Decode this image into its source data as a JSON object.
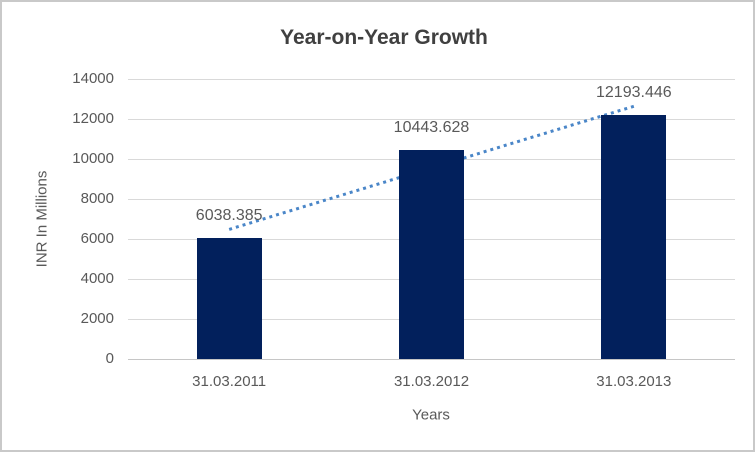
{
  "chart_data": {
    "type": "bar",
    "title": "Year-on-Year Growth",
    "categories": [
      "31.03.2011",
      "31.03.2012",
      "31.03.2013"
    ],
    "values": [
      6038.385,
      10443.628,
      12193.446
    ],
    "value_labels": [
      "6038.385",
      "10443.628",
      "12193.446"
    ],
    "xlabel": "Years",
    "ylabel": "INR In Millions",
    "ylim": [
      0,
      14000
    ],
    "yticks": [
      0,
      2000,
      4000,
      6000,
      8000,
      10000,
      12000,
      14000
    ],
    "grid": true,
    "legend": "none",
    "trendline": {
      "type": "linear",
      "style": "dotted"
    },
    "colors": {
      "bar": "#02205C",
      "trendline": "#4A86C8",
      "gridline": "#D9D9D9",
      "axis_line": "#C6C6C6",
      "text": "#595959",
      "title_text": "#404040",
      "border": "#C9C9C9",
      "background": "#FFFFFF"
    }
  }
}
